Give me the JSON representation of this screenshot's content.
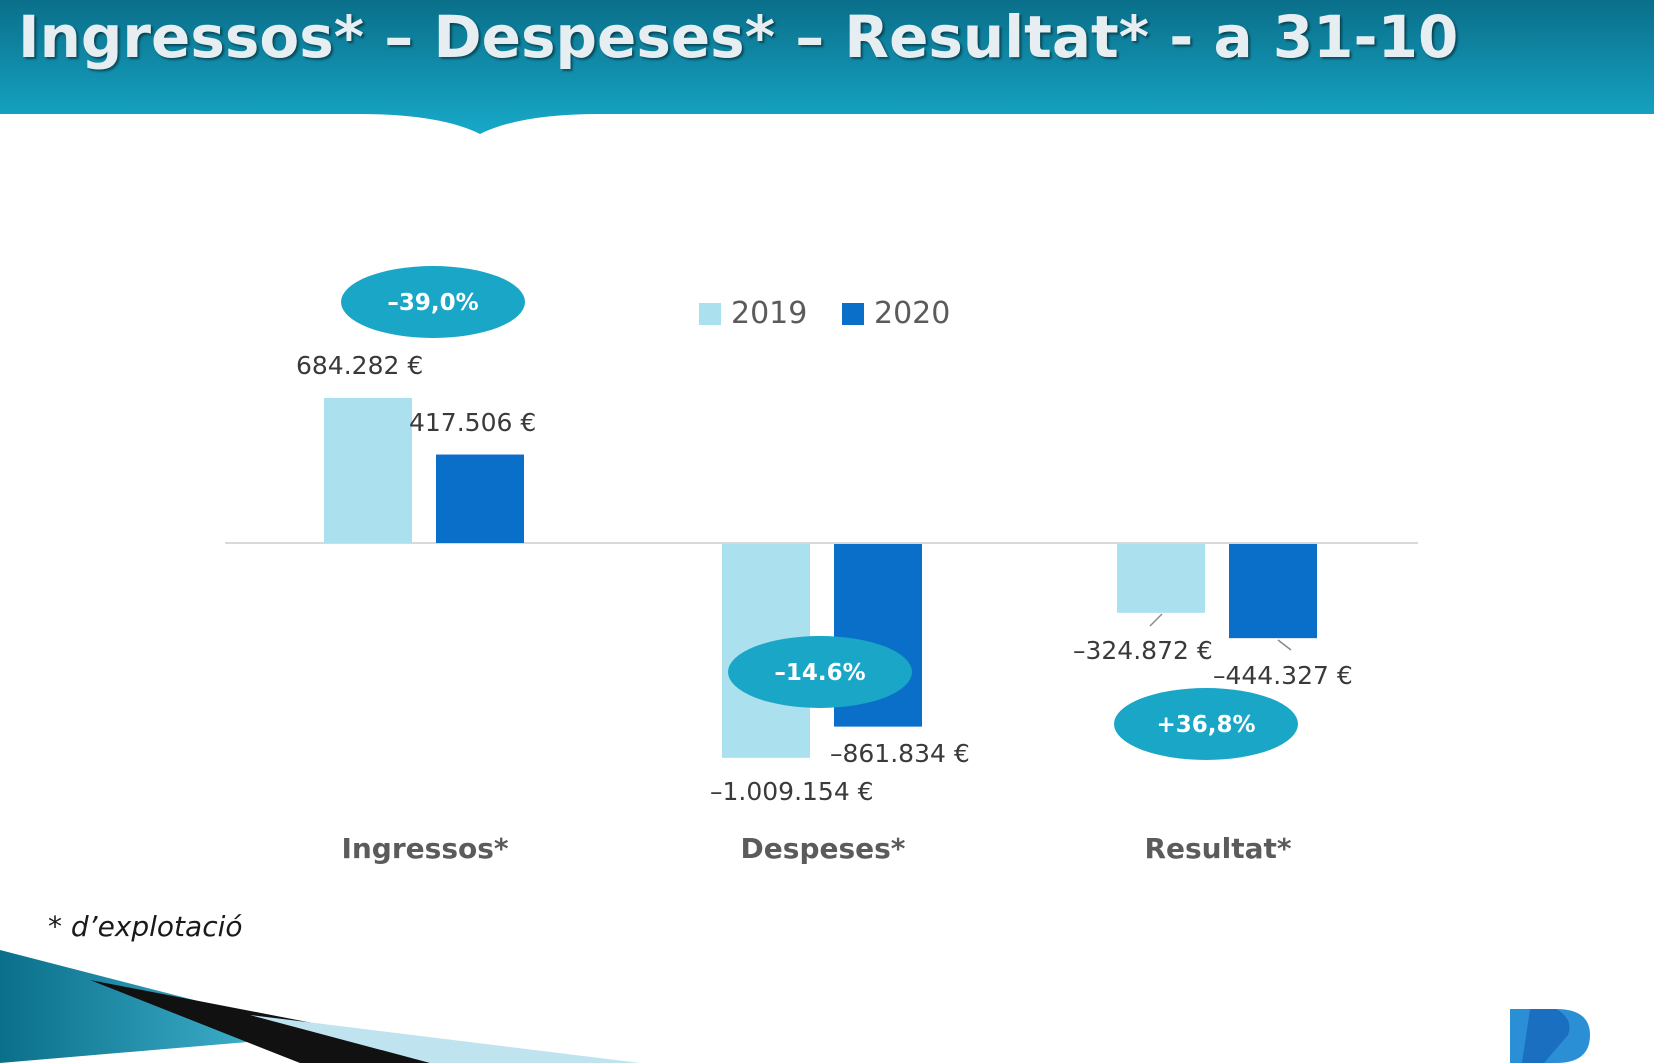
{
  "title": "Ingressos* – Despeses* – Resultat* - a 31-10",
  "footnote": "* d’explotació",
  "colors": {
    "header_dark": "#0a6f8a",
    "header_light": "#17a9c9",
    "series_2019": "#abe1ef",
    "series_2020": "#0a6fc9",
    "badge": "#1aa6c7",
    "axis": "#d9d9d9"
  },
  "chart_data": {
    "type": "bar",
    "title": "",
    "categories": [
      "Ingressos*",
      "Despeses*",
      "Resultat*"
    ],
    "series": [
      {
        "name": "2019",
        "values": [
          684282,
          -1009154,
          -324872
        ],
        "labels": [
          "684.282 €",
          "–1.009.154 €",
          "–324.872 €"
        ]
      },
      {
        "name": "2020",
        "values": [
          417506,
          -861834,
          -444327
        ],
        "labels": [
          "417.506 €",
          "–861.834 €",
          "–444.327 €"
        ]
      }
    ],
    "legend_position": "top",
    "grid": false,
    "ylim": [
      -1009154,
      684282
    ],
    "annotations": [
      {
        "category": "Ingressos*",
        "text": "–39,0%"
      },
      {
        "category": "Despeses*",
        "text": "–14.6%"
      },
      {
        "category": "Resultat*",
        "text": "+36,8%"
      }
    ]
  }
}
